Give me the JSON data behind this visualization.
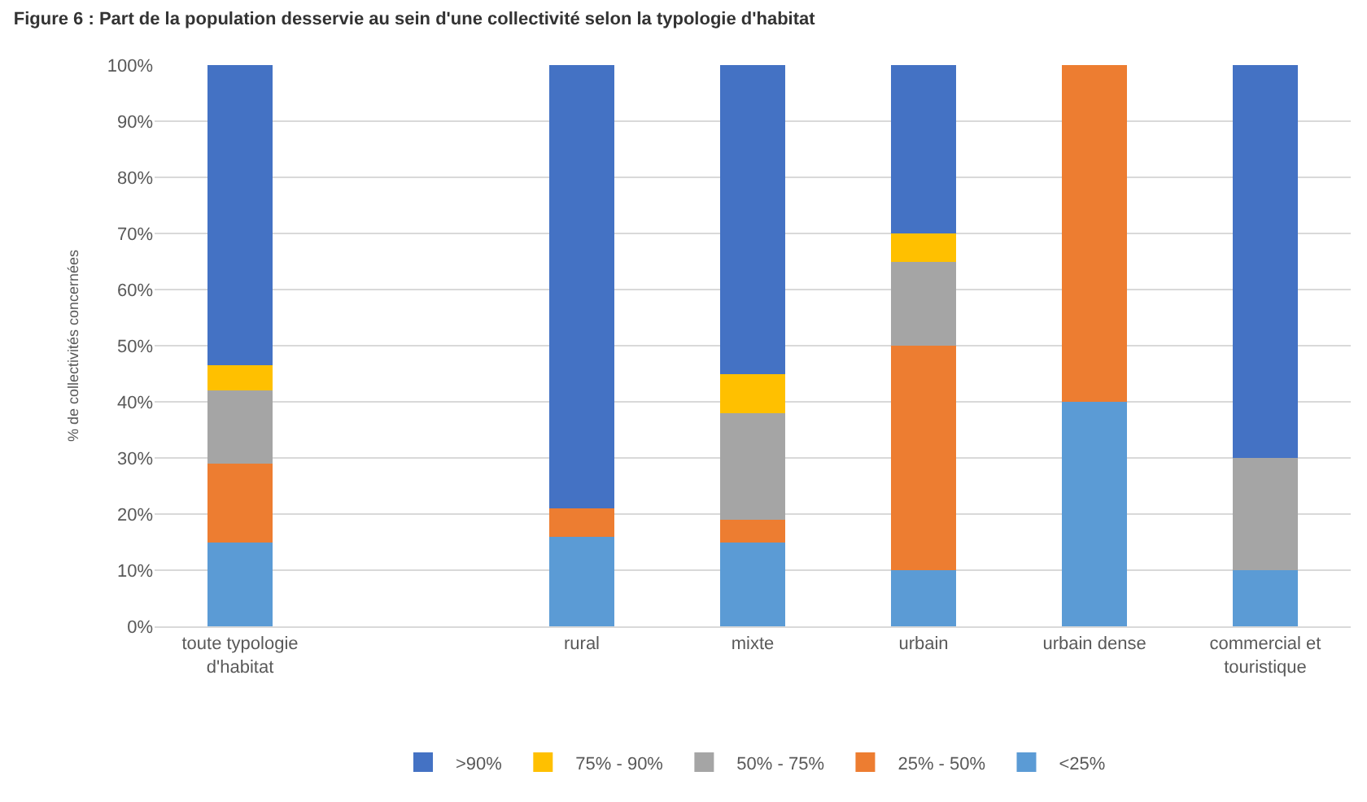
{
  "chart_data": {
    "type": "bar",
    "stacked": true,
    "title": "Figure 6 : Part de la population desservie au sein d'une collectivité selon la typologie d'habitat",
    "ylabel": "% de collectivités concernées",
    "categories": [
      "toute typologie d'habitat",
      null,
      "rural",
      "mixte",
      "urbain",
      "urbain dense",
      "commercial et touristique"
    ],
    "series": [
      {
        "name": "<25%",
        "color": "#5b9bd5",
        "values": [
          15,
          null,
          16,
          15,
          10,
          40,
          10
        ]
      },
      {
        "name": "25% - 50%",
        "color": "#ed7d31",
        "values": [
          14,
          null,
          5,
          4,
          40,
          60,
          0
        ]
      },
      {
        "name": "50% - 75%",
        "color": "#a5a5a5",
        "values": [
          13,
          null,
          0,
          19,
          15,
          0,
          20
        ]
      },
      {
        "name": "75% - 90%",
        "color": "#ffc000",
        "values": [
          4.5,
          null,
          0,
          7,
          5,
          0,
          0
        ]
      },
      {
        "name": ">90%",
        "color": "#4472c4",
        "values": [
          53.5,
          null,
          79,
          55,
          30,
          0,
          70
        ]
      }
    ],
    "ylim": [
      0,
      100
    ],
    "yticks": [
      {
        "value": 0,
        "label": "0%"
      },
      {
        "value": 10,
        "label": "10%"
      },
      {
        "value": 20,
        "label": "20%"
      },
      {
        "value": 30,
        "label": "30%"
      },
      {
        "value": 40,
        "label": "40%"
      },
      {
        "value": 50,
        "label": "50%"
      },
      {
        "value": 60,
        "label": "60%"
      },
      {
        "value": 70,
        "label": "70%"
      },
      {
        "value": 80,
        "label": "80%"
      },
      {
        "value": 90,
        "label": "90%"
      },
      {
        "value": 100,
        "label": "100%"
      }
    ],
    "grid": "y",
    "legend": "bottom"
  }
}
